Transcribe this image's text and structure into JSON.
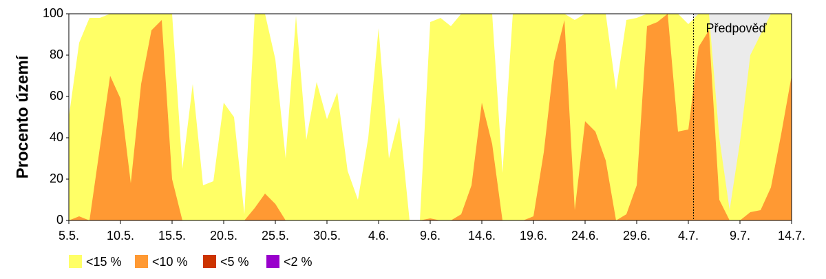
{
  "chart_data": {
    "type": "area",
    "ylabel": "Procento území",
    "annotation": "Předpověď",
    "forecast_start": 61,
    "forecast_color": "#ebebeb",
    "categories": [
      "5.5.",
      null,
      null,
      null,
      null,
      "10.5.",
      null,
      null,
      null,
      null,
      "15.5.",
      null,
      null,
      null,
      null,
      "20.5.",
      null,
      null,
      null,
      null,
      "25.5.",
      null,
      null,
      null,
      null,
      "30.5.",
      null,
      null,
      null,
      null,
      "4.6.",
      null,
      null,
      null,
      null,
      "9.6.",
      null,
      null,
      null,
      null,
      "14.6.",
      null,
      null,
      null,
      null,
      "19.6.",
      null,
      null,
      null,
      null,
      "24.6.",
      null,
      null,
      null,
      null,
      "29.6.",
      null,
      null,
      null,
      null,
      "4.7.",
      null,
      null,
      null,
      null,
      "9.7.",
      null,
      null,
      null,
      null,
      "14.7."
    ],
    "series": [
      {
        "name": "<15 %",
        "color": "#ffff66",
        "values": [
          50,
          86,
          98,
          98,
          100,
          100,
          100,
          100,
          100,
          100,
          100,
          25,
          66,
          17,
          19,
          57,
          50,
          3,
          100,
          100,
          78,
          30,
          99,
          39,
          67,
          49,
          62,
          24,
          10,
          40,
          93,
          30,
          50,
          0,
          0,
          96,
          98,
          94,
          100,
          100,
          100,
          100,
          23,
          100,
          100,
          100,
          100,
          100,
          100,
          97,
          100,
          100,
          100,
          63,
          97,
          98,
          100,
          100,
          100,
          100,
          95,
          100,
          100,
          40,
          5,
          38,
          80,
          90,
          100,
          100,
          100
        ]
      },
      {
        "name": "<10 %",
        "color": "#ff9933",
        "values": [
          0,
          2,
          0,
          35,
          70,
          59,
          18,
          66,
          92,
          97,
          20,
          0,
          0,
          0,
          0,
          0,
          0,
          0,
          6,
          13,
          8,
          0,
          0,
          0,
          0,
          0,
          0,
          0,
          0,
          0,
          0,
          0,
          0,
          0,
          0,
          1,
          0,
          0,
          3,
          17,
          57,
          37,
          0,
          0,
          0,
          2,
          33,
          77,
          97,
          5,
          48,
          43,
          29,
          0,
          3,
          17,
          94,
          96,
          100,
          43,
          44,
          84,
          92,
          10,
          0,
          0,
          4,
          5,
          16,
          42,
          70
        ]
      },
      {
        "name": "<5 %",
        "color": "#cc3300",
        "values": [
          0,
          0,
          0,
          0,
          0,
          0,
          0,
          0,
          0,
          0,
          0,
          0,
          0,
          0,
          0,
          0,
          0,
          0,
          0,
          0,
          0,
          0,
          0,
          0,
          0,
          0,
          0,
          0,
          0,
          0,
          0,
          0,
          0,
          0,
          0,
          0,
          0,
          0,
          0,
          0,
          0,
          0,
          0,
          0,
          0,
          0,
          0,
          0,
          0,
          0,
          0,
          0,
          0,
          0,
          0,
          0,
          0,
          0,
          0,
          0,
          0,
          0,
          0,
          0,
          0,
          0,
          0,
          0,
          0,
          0,
          0
        ]
      },
      {
        "name": "<2 %",
        "color": "#9900cc",
        "values": [
          0,
          0,
          0,
          0,
          0,
          0,
          0,
          0,
          0,
          0,
          0,
          0,
          0,
          0,
          0,
          0,
          0,
          0,
          0,
          0,
          0,
          0,
          0,
          0,
          0,
          0,
          0,
          0,
          0,
          0,
          0,
          0,
          0,
          0,
          0,
          0,
          0,
          0,
          0,
          0,
          0,
          0,
          0,
          0,
          0,
          0,
          0,
          0,
          0,
          0,
          0,
          0,
          0,
          0,
          0,
          0,
          0,
          0,
          0,
          0,
          0,
          0,
          0,
          0,
          0,
          0,
          0,
          0,
          0,
          0,
          0
        ]
      }
    ],
    "ylim": [
      0,
      100
    ],
    "yticks": [
      0,
      20,
      40,
      60,
      80,
      100
    ]
  }
}
